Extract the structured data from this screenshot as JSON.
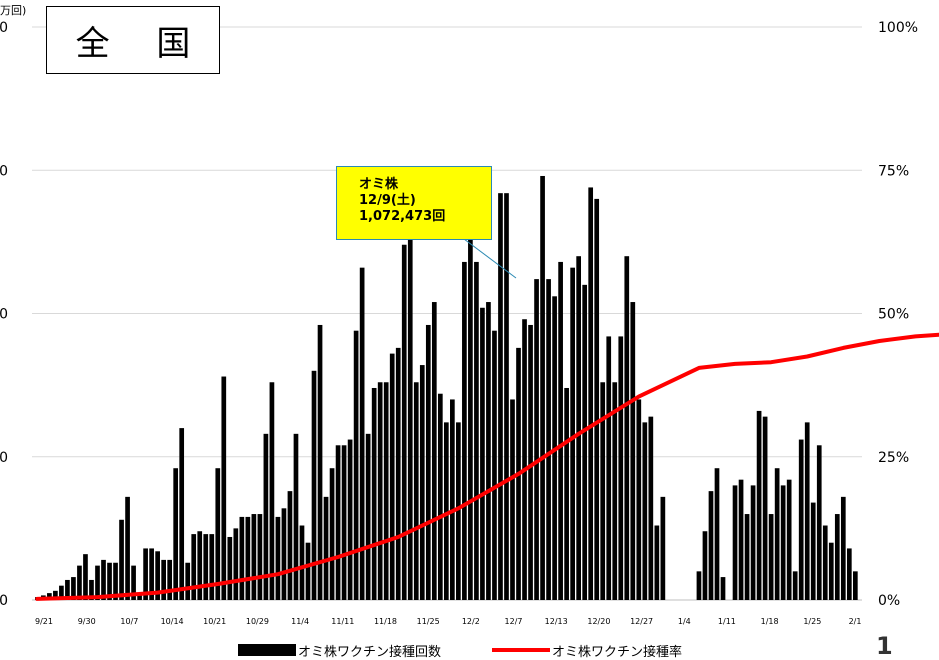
{
  "title": "全 国",
  "unit_label": "万回)",
  "callout": {
    "line1": "オミ株",
    "line2": "12/9(土)",
    "line3": "1,072,473回"
  },
  "legend": {
    "bars": "オミ株ワクチン接種回数",
    "line": "オミ株ワクチン接種率"
  },
  "page_number": "1",
  "chart_data": {
    "type": "bar",
    "colors": {
      "bars": "#000000",
      "line": "#ff0000",
      "grid": "#d9d9d9"
    },
    "left_axis": {
      "ticks": [
        0,
        25,
        50,
        75,
        100
      ],
      "tick_labels": [
        "0",
        "0",
        "0",
        "0",
        "0"
      ],
      "max": 100
    },
    "right_axis": {
      "ticks": [
        0,
        25,
        50,
        75,
        100
      ],
      "tick_labels": [
        "0%",
        "25%",
        "50%",
        "75%",
        "100%"
      ]
    },
    "x_tick_labels": [
      "9/21",
      "9/30",
      "10/7",
      "10/14",
      "10/21",
      "10/29",
      "11/4",
      "11/11",
      "11/18",
      "11/25",
      "12/2",
      "12/7",
      "12/13",
      "12/20",
      "12/27",
      "1/4",
      "1/11",
      "1/18",
      "1/25",
      "2/1"
    ],
    "series": [
      {
        "name": "オミ株ワクチン接種回数",
        "type": "bar",
        "axis": "left",
        "values": [
          0.5,
          0.8,
          1.2,
          1.6,
          2.5,
          3.5,
          4,
          6,
          8,
          3.5,
          6,
          7,
          6.5,
          6.5,
          14,
          18,
          6,
          1,
          9,
          9,
          8.5,
          7,
          7,
          23,
          30,
          6.5,
          11.5,
          12,
          11.5,
          11.5,
          23,
          39,
          11,
          12.5,
          14.5,
          14.5,
          15,
          15,
          29,
          38,
          14.5,
          16,
          19,
          29,
          13,
          10,
          40,
          48,
          18,
          23,
          27,
          27,
          28,
          47,
          58,
          29,
          37,
          38,
          38,
          43,
          44,
          62,
          66,
          38,
          41,
          48,
          52,
          36,
          31,
          35,
          31,
          59,
          71,
          59,
          51,
          52,
          47,
          71,
          71,
          35,
          44,
          49,
          48,
          56,
          74,
          56,
          53,
          59,
          37,
          58,
          60,
          55,
          72,
          70,
          38,
          46,
          38,
          46,
          60,
          52,
          35,
          31,
          32,
          13,
          18,
          0,
          0,
          0,
          0,
          0,
          5,
          12,
          19,
          23,
          4,
          0,
          20,
          21,
          15,
          20,
          33,
          32,
          15,
          23,
          20,
          21,
          5,
          28,
          31,
          17,
          27,
          13,
          10,
          15,
          18,
          9,
          5
        ],
        "bar_height_scale_note": ""
      },
      {
        "name": "オミ株ワクチン接種率",
        "type": "line",
        "axis": "right",
        "points": [
          {
            "i": 0,
            "v": 0.2
          },
          {
            "i": 10,
            "v": 0.5
          },
          {
            "i": 20,
            "v": 1.3
          },
          {
            "i": 30,
            "v": 2.8
          },
          {
            "i": 40,
            "v": 4.5
          },
          {
            "i": 50,
            "v": 7.5
          },
          {
            "i": 60,
            "v": 11
          },
          {
            "i": 70,
            "v": 16
          },
          {
            "i": 80,
            "v": 22
          },
          {
            "i": 90,
            "v": 29
          },
          {
            "i": 100,
            "v": 35.5
          },
          {
            "i": 110,
            "v": 40.5
          },
          {
            "i": 116,
            "v": 41.2
          },
          {
            "i": 122,
            "v": 41.5
          },
          {
            "i": 128,
            "v": 42.5
          },
          {
            "i": 134,
            "v": 44
          },
          {
            "i": 140,
            "v": 45.2
          },
          {
            "i": 146,
            "v": 46
          },
          {
            "i": 150,
            "v": 46.3
          }
        ]
      }
    ],
    "legend_position": "bottom",
    "grid": true
  }
}
